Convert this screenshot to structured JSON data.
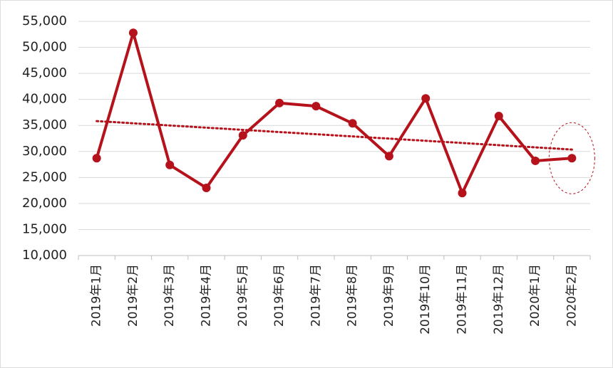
{
  "chart_data": {
    "type": "line",
    "categories": [
      "2019年1月",
      "2019年2月",
      "2019年3月",
      "2019年4月",
      "2019年5月",
      "2019年6月",
      "2019年7月",
      "2019年8月",
      "2019年9月",
      "2019年10月",
      "2019年11月",
      "2019年12月",
      "2020年1月",
      "2020年2月"
    ],
    "values": [
      28700,
      52800,
      27400,
      23000,
      33100,
      39300,
      38700,
      35400,
      29100,
      40200,
      22000,
      36800,
      28200,
      28700
    ],
    "color": "#b5121b",
    "trendline": true,
    "ylim": [
      10000,
      55000
    ],
    "yticks": [
      {
        "value": 10000,
        "label": "10,000"
      },
      {
        "value": 15000,
        "label": "15,000"
      },
      {
        "value": 20000,
        "label": "20,000"
      },
      {
        "value": 25000,
        "label": "25,000"
      },
      {
        "value": 30000,
        "label": "30,000"
      },
      {
        "value": 35000,
        "label": "35,000"
      },
      {
        "value": 40000,
        "label": "40,000"
      },
      {
        "value": 45000,
        "label": "45,000"
      },
      {
        "value": 50000,
        "label": "50,000"
      },
      {
        "value": 55000,
        "label": "55,000"
      }
    ],
    "grid": true
  }
}
